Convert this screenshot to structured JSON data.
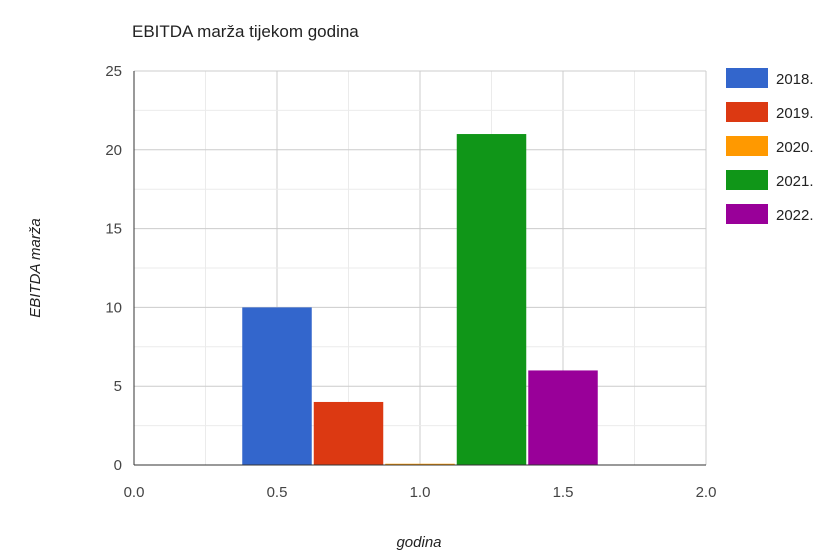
{
  "chart_data": {
    "type": "bar",
    "title": "EBITDA marža tijekom godina",
    "xlabel": "godina",
    "ylabel": "EBITDA marža",
    "xlim": [
      0.0,
      2.0
    ],
    "ylim": [
      0,
      25
    ],
    "x_ticks": [
      "0.0",
      "0.5",
      "1.0",
      "1.5",
      "2.0"
    ],
    "y_ticks": [
      "0",
      "5",
      "10",
      "15",
      "20",
      "25"
    ],
    "grid": true,
    "legend_position": "right",
    "series": [
      {
        "name": "2018.",
        "x": 0.5,
        "value": 10,
        "color": "#3366cc"
      },
      {
        "name": "2019.",
        "x": 0.75,
        "value": 4,
        "color": "#dc3912"
      },
      {
        "name": "2020.",
        "x": 1.0,
        "value": 0,
        "color": "#ff9900"
      },
      {
        "name": "2021.",
        "x": 1.25,
        "value": 21,
        "color": "#109618"
      },
      {
        "name": "2022.",
        "x": 1.5,
        "value": 6,
        "color": "#990099"
      }
    ],
    "bar_width": 0.25
  }
}
